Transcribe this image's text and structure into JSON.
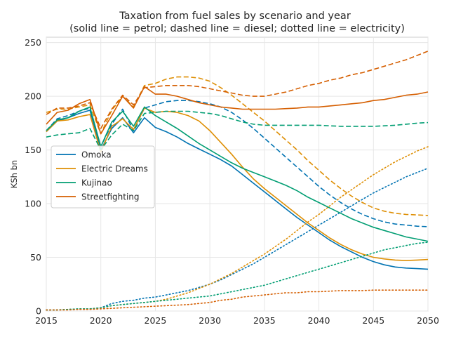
{
  "chart_data": {
    "type": "line",
    "title": "Taxation from fuel sales by scenario and year",
    "subtitle": "(solid line = petrol; dashed line = diesel; dotted line = electricity)",
    "xlabel": "",
    "ylabel": "KSh bn",
    "xlim": [
      2015,
      2050
    ],
    "ylim": [
      0,
      255
    ],
    "xticks": [
      2015,
      2020,
      2025,
      2030,
      2035,
      2040,
      2045,
      2050
    ],
    "yticks": [
      0,
      50,
      100,
      150,
      200,
      250
    ],
    "grid": true,
    "legend_position": "center-left",
    "colors": {
      "Omoka": "#0173b2",
      "Electric Dreams": "#de8f05",
      "Kujinao": "#029e73",
      "Streetfighting": "#d55e00"
    },
    "legend": [
      "Omoka",
      "Electric Dreams",
      "Kujinao",
      "Streetfighting"
    ],
    "series": [
      {
        "scenario": "Omoka",
        "fuel": "petrol",
        "style": "solid",
        "x": [
          2015,
          2016,
          2017,
          2018,
          2019,
          2020,
          2021,
          2022,
          2023,
          2024,
          2025,
          2026,
          2027,
          2028,
          2029,
          2030,
          2031,
          2032,
          2033,
          2034,
          2035,
          2036,
          2037,
          2038,
          2039,
          2040,
          2041,
          2042,
          2043,
          2044,
          2045,
          2046,
          2047,
          2048,
          2049,
          2050
        ],
        "y": [
          167,
          177,
          180,
          184,
          187,
          150,
          170,
          180,
          166,
          180,
          171,
          167,
          162,
          156,
          151,
          146,
          141,
          135,
          127,
          119,
          111,
          103,
          95,
          87,
          80,
          73,
          66,
          60,
          55,
          50,
          46,
          43,
          41,
          40,
          39.5,
          39
        ]
      },
      {
        "scenario": "Omoka",
        "fuel": "diesel",
        "style": "dashed",
        "x": [
          2015,
          2016,
          2017,
          2018,
          2019,
          2020,
          2021,
          2022,
          2023,
          2024,
          2025,
          2026,
          2027,
          2028,
          2029,
          2030,
          2031,
          2032,
          2033,
          2034,
          2035,
          2036,
          2037,
          2038,
          2039,
          2040,
          2041,
          2042,
          2043,
          2044,
          2045,
          2046,
          2047,
          2048,
          2049,
          2050
        ],
        "y": [
          168,
          179,
          182,
          186,
          189,
          153,
          174,
          188,
          168,
          189,
          192,
          195,
          196,
          196,
          195,
          193,
          190,
          185,
          178,
          170,
          161,
          152,
          143,
          134,
          125,
          116,
          108,
          101,
          95,
          90,
          86,
          83,
          81,
          80,
          79,
          78.5
        ]
      },
      {
        "scenario": "Omoka",
        "fuel": "electricity",
        "style": "dotted",
        "x": [
          2015,
          2016,
          2017,
          2018,
          2019,
          2020,
          2021,
          2022,
          2023,
          2024,
          2025,
          2026,
          2027,
          2028,
          2029,
          2030,
          2031,
          2032,
          2033,
          2034,
          2035,
          2036,
          2037,
          2038,
          2039,
          2040,
          2041,
          2042,
          2043,
          2044,
          2045,
          2046,
          2047,
          2048,
          2049,
          2050
        ],
        "y": [
          1,
          1,
          1.5,
          2,
          2,
          3,
          7,
          9,
          10,
          12,
          13,
          15,
          17,
          19,
          22,
          25,
          29,
          34,
          39,
          44,
          50,
          56,
          62,
          68,
          74,
          80,
          86,
          92,
          98,
          104,
          110,
          115,
          120,
          125,
          129,
          133
        ]
      },
      {
        "scenario": "Electric Dreams",
        "fuel": "petrol",
        "style": "solid",
        "x": [
          2015,
          2016,
          2017,
          2018,
          2019,
          2020,
          2021,
          2022,
          2023,
          2024,
          2025,
          2026,
          2027,
          2028,
          2029,
          2030,
          2031,
          2032,
          2033,
          2034,
          2035,
          2036,
          2037,
          2038,
          2039,
          2040,
          2041,
          2042,
          2043,
          2044,
          2045,
          2046,
          2047,
          2048,
          2049,
          2050
        ],
        "y": [
          167,
          177,
          178,
          181,
          183,
          148,
          172,
          179,
          169,
          189,
          185,
          186,
          185,
          182,
          177,
          168,
          157,
          146,
          134,
          123,
          114,
          106,
          98,
          90,
          82,
          75,
          68,
          62,
          57,
          53,
          50,
          48.5,
          47.5,
          47,
          47.5,
          48
        ]
      },
      {
        "scenario": "Electric Dreams",
        "fuel": "diesel",
        "style": "dashed",
        "x": [
          2015,
          2016,
          2017,
          2018,
          2019,
          2020,
          2021,
          2022,
          2023,
          2024,
          2025,
          2026,
          2027,
          2028,
          2029,
          2030,
          2031,
          2032,
          2033,
          2034,
          2035,
          2036,
          2037,
          2038,
          2039,
          2040,
          2041,
          2042,
          2043,
          2044,
          2045,
          2046,
          2047,
          2048,
          2049,
          2050
        ],
        "y": [
          185,
          188,
          188,
          190,
          192,
          165,
          187,
          200,
          190,
          210,
          212,
          216,
          218,
          218,
          217,
          214,
          208,
          201,
          193,
          185,
          177,
          168,
          159,
          150,
          140,
          131,
          122,
          114,
          107,
          101,
          96,
          93,
          91,
          90,
          89.5,
          89
        ]
      },
      {
        "scenario": "Electric Dreams",
        "fuel": "electricity",
        "style": "dotted",
        "x": [
          2015,
          2016,
          2017,
          2018,
          2019,
          2020,
          2021,
          2022,
          2023,
          2024,
          2025,
          2026,
          2027,
          2028,
          2029,
          2030,
          2031,
          2032,
          2033,
          2034,
          2035,
          2036,
          2037,
          2038,
          2039,
          2040,
          2041,
          2042,
          2043,
          2044,
          2045,
          2046,
          2047,
          2048,
          2049,
          2050
        ],
        "y": [
          1,
          1,
          1.5,
          2,
          2,
          3,
          5,
          6,
          7,
          8,
          9,
          11,
          14,
          17,
          21,
          25,
          30,
          35,
          41,
          47,
          53,
          60,
          67,
          75,
          83,
          90,
          98,
          106,
          113,
          120,
          127,
          133,
          139,
          144,
          149,
          153
        ]
      },
      {
        "scenario": "Kujinao",
        "fuel": "petrol",
        "style": "solid",
        "x": [
          2015,
          2016,
          2017,
          2018,
          2019,
          2020,
          2021,
          2022,
          2023,
          2024,
          2025,
          2026,
          2027,
          2028,
          2029,
          2030,
          2031,
          2032,
          2033,
          2034,
          2035,
          2036,
          2037,
          2038,
          2039,
          2040,
          2041,
          2042,
          2043,
          2044,
          2045,
          2046,
          2047,
          2048,
          2049,
          2050
        ],
        "y": [
          168,
          178,
          180,
          186,
          190,
          153,
          176,
          186,
          172,
          190,
          182,
          176,
          170,
          163,
          156,
          150,
          144,
          138,
          133,
          129,
          125,
          121,
          117,
          112,
          106,
          101,
          96,
          91,
          86,
          82,
          78,
          75,
          72,
          69,
          67,
          65
        ]
      },
      {
        "scenario": "Kujinao",
        "fuel": "diesel",
        "style": "dashed",
        "x": [
          2015,
          2016,
          2017,
          2018,
          2019,
          2020,
          2021,
          2022,
          2023,
          2024,
          2025,
          2026,
          2027,
          2028,
          2029,
          2030,
          2031,
          2032,
          2033,
          2034,
          2035,
          2036,
          2037,
          2038,
          2039,
          2040,
          2041,
          2042,
          2043,
          2044,
          2045,
          2046,
          2047,
          2048,
          2049,
          2050
        ],
        "y": [
          162,
          164,
          165,
          166,
          170,
          150,
          164,
          174,
          168,
          184,
          185,
          186,
          186,
          186,
          185,
          184,
          182,
          179,
          176,
          174,
          173,
          173,
          173,
          173,
          173,
          173,
          172.5,
          172,
          172,
          172,
          172,
          172.5,
          173,
          174,
          175,
          175.5
        ]
      },
      {
        "scenario": "Kujinao",
        "fuel": "electricity",
        "style": "dotted",
        "x": [
          2015,
          2016,
          2017,
          2018,
          2019,
          2020,
          2021,
          2022,
          2023,
          2024,
          2025,
          2026,
          2027,
          2028,
          2029,
          2030,
          2031,
          2032,
          2033,
          2034,
          2035,
          2036,
          2037,
          2038,
          2039,
          2040,
          2041,
          2042,
          2043,
          2044,
          2045,
          2046,
          2047,
          2048,
          2049,
          2050
        ],
        "y": [
          1,
          1,
          1.5,
          2,
          2,
          3,
          5,
          6,
          7,
          8,
          9,
          10,
          11,
          12,
          13,
          14,
          16,
          18,
          20,
          22,
          24,
          27,
          30,
          33,
          36,
          39,
          42,
          45,
          48,
          51,
          54,
          57,
          59,
          61,
          63,
          64
        ]
      },
      {
        "scenario": "Streetfighting",
        "fuel": "petrol",
        "style": "solid",
        "x": [
          2015,
          2016,
          2017,
          2018,
          2019,
          2020,
          2021,
          2022,
          2023,
          2024,
          2025,
          2026,
          2027,
          2028,
          2029,
          2030,
          2031,
          2032,
          2033,
          2034,
          2035,
          2036,
          2037,
          2038,
          2039,
          2040,
          2041,
          2042,
          2043,
          2044,
          2045,
          2046,
          2047,
          2048,
          2049,
          2050
        ],
        "y": [
          174,
          185,
          187,
          193,
          197,
          165,
          182,
          200,
          189,
          209,
          202,
          202,
          200,
          197,
          194,
          192,
          190,
          189,
          188,
          188,
          188,
          188,
          188.5,
          189,
          190,
          190,
          191,
          192,
          193,
          194,
          196,
          197,
          199,
          201,
          202,
          204
        ]
      },
      {
        "scenario": "Streetfighting",
        "fuel": "diesel",
        "style": "dashed",
        "x": [
          2015,
          2016,
          2017,
          2018,
          2019,
          2020,
          2021,
          2022,
          2023,
          2024,
          2025,
          2026,
          2027,
          2028,
          2029,
          2030,
          2031,
          2032,
          2033,
          2034,
          2035,
          2036,
          2037,
          2038,
          2039,
          2040,
          2041,
          2042,
          2043,
          2044,
          2045,
          2046,
          2047,
          2048,
          2049,
          2050
        ],
        "y": [
          183,
          189,
          189,
          191,
          194,
          170,
          188,
          201,
          192,
          208,
          209,
          210,
          210,
          210,
          209,
          207,
          205,
          203,
          201,
          200,
          200,
          202,
          204,
          207,
          210,
          212,
          215,
          217,
          220,
          222,
          225,
          228,
          231,
          234,
          238,
          242
        ]
      },
      {
        "scenario": "Streetfighting",
        "fuel": "electricity",
        "style": "dotted",
        "x": [
          2015,
          2016,
          2017,
          2018,
          2019,
          2020,
          2021,
          2022,
          2023,
          2024,
          2025,
          2026,
          2027,
          2028,
          2029,
          2030,
          2031,
          2032,
          2033,
          2034,
          2035,
          2036,
          2037,
          2038,
          2039,
          2040,
          2041,
          2042,
          2043,
          2044,
          2045,
          2046,
          2047,
          2048,
          2049,
          2050
        ],
        "y": [
          1,
          1,
          1,
          1.5,
          1.5,
          2,
          2.5,
          3,
          3.5,
          4,
          4.5,
          5,
          5.5,
          6,
          7,
          8,
          10,
          11,
          13,
          14,
          15,
          16,
          17,
          17,
          18,
          18,
          18.5,
          19,
          19,
          19,
          19.5,
          19.5,
          19.5,
          19.5,
          19.5,
          19.5
        ]
      }
    ]
  }
}
